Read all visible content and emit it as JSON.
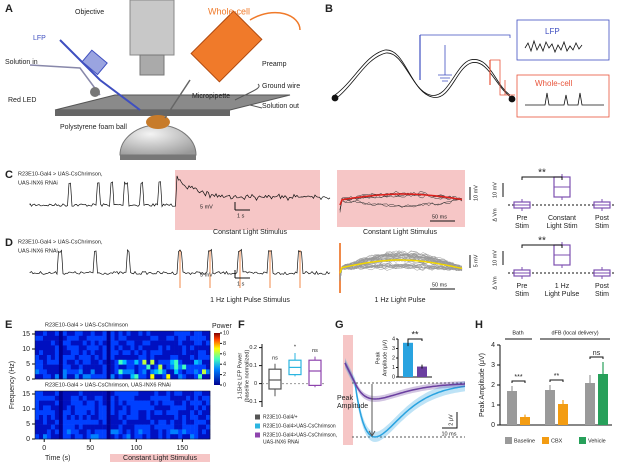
{
  "panel_a": {
    "label": "A",
    "objective": "Objective",
    "whole_cell": "Whole-cell",
    "preamp": "Preamp",
    "lfp": "LFP",
    "solution_in": "Solution in",
    "ground_wire": "Ground wire",
    "solution_out": "Solution out",
    "micropipette": "Micropipette",
    "red_led": "Red LED",
    "ball": "Polystyrene foam ball"
  },
  "panel_b": {
    "label": "B",
    "lfp": "LFP",
    "whole_cell": "Whole-cell"
  },
  "panel_c": {
    "label": "C",
    "genotype": [
      "R23E10-Gal4 > UAS-CsChrimson,",
      "UAS-INX6 RNAi"
    ],
    "trace_scale_v": "5 mV",
    "trace_scale_t": "1 s",
    "stimulus": "Constant Light Stimulus",
    "zoom_stimulus": "Constant Light Stimulus",
    "zoom_scale_t": "50 ms",
    "zoom_scale_v": "10 mV",
    "summary_scale_v": "10 mV",
    "summary_ylabel": "Δ Vm",
    "summary_categories": [
      [
        "Pre",
        "Stim"
      ],
      [
        "Constant",
        "Light Stim"
      ],
      [
        "Post",
        "Stim"
      ]
    ],
    "significance": "**"
  },
  "panel_d": {
    "label": "D",
    "genotype": [
      "R23E10-Gal4 > UAS-CsChrimson,",
      "UAS-INX6 RNAi"
    ],
    "trace_scale_v": "5 mV",
    "trace_scale_t": "1 s",
    "stimulus": "1 Hz Light Pulse Stimulus",
    "zoom_stimulus": "1 Hz Light Pulse",
    "zoom_scale_t": "50 ms",
    "zoom_scale_v": "5 mV",
    "summary_scale_v": "10 mV",
    "summary_ylabel": "Δ Vm",
    "summary_categories": [
      [
        "Pre",
        "Stim"
      ],
      [
        "1 Hz",
        "Light Pulse"
      ],
      [
        "Post",
        "Stim"
      ]
    ],
    "significance": "**"
  },
  "panel_e": {
    "label": "E",
    "titles": [
      "R23E10-Gal4 > UAS-CsChrimson",
      "R23E10-Gal4 > UAS-CsChrimson, UAS-INX6 RNAi"
    ],
    "ylabel": "Frequency (Hz)",
    "ylim": [
      0,
      16
    ],
    "yticks": [
      0,
      5,
      10,
      15
    ],
    "xlabel": "Time (s)",
    "xlim": [
      -10,
      180
    ],
    "xticks": [
      0,
      50,
      100,
      150
    ],
    "stimulus": "Constant Light Stimulus",
    "colorbar_title": "Power",
    "colorbar_lim": [
      0,
      10
    ],
    "colorbar_ticks": [
      0,
      2,
      4,
      6,
      8,
      10
    ]
  },
  "panel_f": {
    "label": "F",
    "type": "box",
    "ylabel": [
      "1-15Hz LFP Power",
      "(baseline normalized)"
    ],
    "ylim": [
      -0.13,
      0.22
    ],
    "yticks": [
      -0.1,
      0,
      0.1,
      0.2
    ],
    "boxes": [
      {
        "legend": [
          "R23E10-Gal4/+"
        ],
        "color": "#555555",
        "min": -0.07,
        "q1": -0.03,
        "median": 0.02,
        "q3": 0.08,
        "max": 0.11,
        "significance": "ns"
      },
      {
        "legend": [
          "R23E10-Gal4>UAS-CsChrimson"
        ],
        "color": "#2bb5e0",
        "min": 0.04,
        "q1": 0.05,
        "median": 0.09,
        "q3": 0.13,
        "max": 0.17,
        "significance": "*"
      },
      {
        "legend": [
          "R23E10-Gal4>UAS-CsChrimson,",
          "UAS-INX6 RNAi"
        ],
        "color": "#8e44ad",
        "min": -0.02,
        "q1": -0.01,
        "median": 0.07,
        "q3": 0.13,
        "max": 0.15,
        "significance": "ns"
      }
    ]
  },
  "panel_g": {
    "label": "G",
    "peak_label": [
      "Peak",
      "Amplitude"
    ],
    "scale_v": "2 μV",
    "scale_t": "10 ms",
    "inset": {
      "ylabel": [
        "Peak",
        "Amplitude (μV)"
      ],
      "ylim": [
        0,
        4
      ],
      "yticks": [
        0,
        1,
        2,
        3,
        4
      ],
      "values": [
        3.6,
        1.1
      ],
      "errors": [
        0.35,
        0.2
      ],
      "colors": [
        "#29a3e0",
        "#6b3fa0"
      ],
      "significance": "**"
    }
  },
  "panel_h": {
    "label": "H",
    "type": "bar",
    "groups": [
      "Bath",
      "dFB (local delivery)"
    ],
    "ylabel": "Peak Amplitude (μV)",
    "ylim": [
      0,
      4
    ],
    "yticks": [
      0,
      1,
      2,
      3,
      4
    ],
    "series": [
      {
        "name": "Baseline",
        "color": "#9a9a9a",
        "values": [
          1.7,
          1.75,
          2.1
        ],
        "errors": [
          0.25,
          0.25,
          0.4
        ]
      },
      {
        "name": "CBX",
        "color": "#f39c12",
        "values": [
          0.4,
          1.05,
          null
        ],
        "errors": [
          0.12,
          0.2,
          null
        ]
      },
      {
        "name": "Vehicle",
        "color": "#27a05a",
        "values": [
          null,
          null,
          2.55
        ],
        "errors": [
          null,
          null,
          0.6
        ]
      }
    ],
    "significance": [
      "***",
      "**",
      "ns"
    ]
  }
}
